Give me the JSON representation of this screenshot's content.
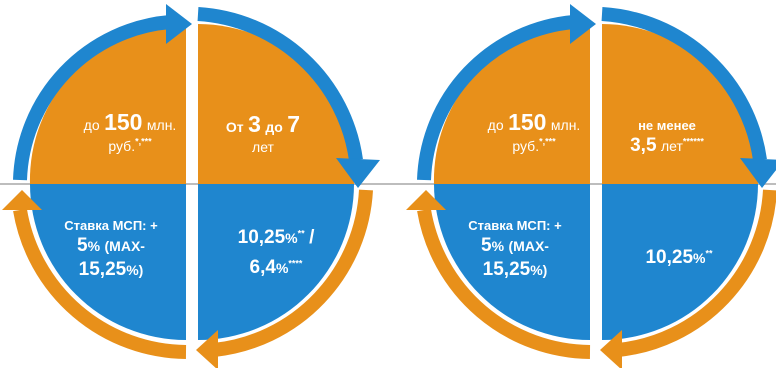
{
  "colors": {
    "orange": "#E8901A",
    "blue": "#1F86CF",
    "divider": "#BDBDBD",
    "text": "#FFFFFF"
  },
  "left": {
    "top_left": {
      "pre": "до",
      "num": "150",
      "unit": "млн.",
      "unit2": "руб.",
      "note": "*,***"
    },
    "top_right": {
      "pre": "От",
      "n1": "3",
      "mid": "до",
      "n2": "7",
      "unit": "лет"
    },
    "bottom_left": {
      "l1": "Ставка МСП: +",
      "num": "5",
      "pct": "%",
      "pre_max": "(MAX-",
      "max": "15,25",
      "pct2": "%)"
    },
    "bottom_right": {
      "v1": "10,25",
      "p1": "%",
      "n1": "**",
      "sep": "/",
      "v2": "6,4",
      "p2": "%",
      "n2": "****"
    }
  },
  "right": {
    "top_left": {
      "pre": "до",
      "num": "150",
      "unit": "млн.",
      "unit2": "руб.",
      "note": "*,***"
    },
    "top_right": {
      "l1": "не менее",
      "num": "3,5",
      "unit": "лет",
      "note": "******"
    },
    "bottom_left": {
      "l1": "Ставка МСП: +",
      "num": "5",
      "pct": "%",
      "pre_max": "(MAX-",
      "max": "15,25",
      "pct2": "%)"
    },
    "bottom_right": {
      "v1": "10,25",
      "p1": "%",
      "n1": "**"
    }
  }
}
